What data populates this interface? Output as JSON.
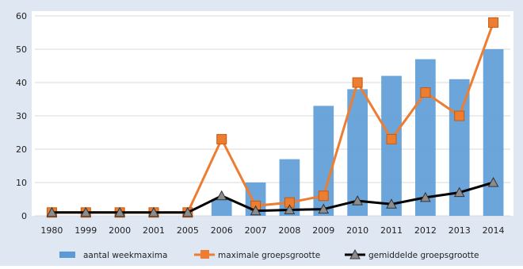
{
  "chart_data": {
    "type": "bar",
    "categories": [
      "1980",
      "1999",
      "2000",
      "2001",
      "2005",
      "2006",
      "2007",
      "2008",
      "2009",
      "2010",
      "2011",
      "2012",
      "2013",
      "2014"
    ],
    "ylim": [
      0,
      60
    ],
    "yticks": [
      0,
      10,
      20,
      30,
      40,
      50,
      60
    ],
    "series": [
      {
        "name": "aantal weekmaxima",
        "kind": "bar",
        "color": "#5b9bd5",
        "values": [
          0,
          0,
          0,
          0,
          0,
          5,
          10,
          17,
          33,
          38,
          42,
          47,
          41,
          50
        ]
      },
      {
        "name": "maximale groepsgrootte",
        "kind": "line",
        "marker": "square",
        "color": "#ed7d31",
        "values": [
          1,
          1,
          1,
          1,
          1,
          23,
          3,
          4,
          6,
          40,
          23,
          37,
          30,
          58
        ]
      },
      {
        "name": "gemiddelde groepsgrootte",
        "kind": "line",
        "marker": "triangle",
        "color": "#000000",
        "values": [
          1,
          1,
          1,
          1,
          1,
          6,
          1.5,
          1.8,
          2,
          4.5,
          3.5,
          5.5,
          7,
          10
        ]
      }
    ],
    "grid": true,
    "legend_position": "bottom",
    "colors": {
      "page_background": "#dfe7f3",
      "plot_background": "#ffffff",
      "gridline": "#d9d9d9"
    }
  }
}
